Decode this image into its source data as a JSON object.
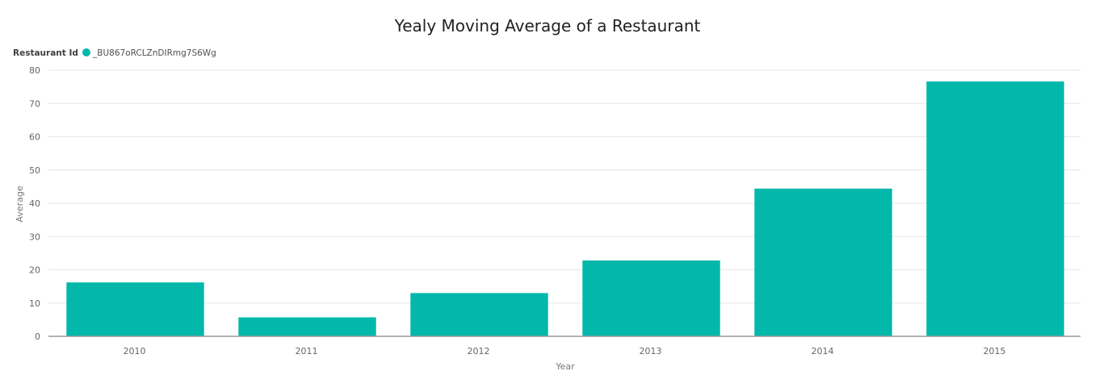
{
  "chart_data": {
    "type": "bar",
    "title": "Yealy Moving Average of a Restaurant",
    "xlabel": "Year",
    "ylabel": "Average",
    "legend_title": "Restaurant Id",
    "legend_placement": "top-left",
    "categories": [
      "2010",
      "2011",
      "2012",
      "2013",
      "2014",
      "2015"
    ],
    "series": [
      {
        "name": "_BU867oRCLZnDIRmg7S6Wg",
        "color": "#01b8aa",
        "values": [
          16.2,
          5.7,
          13.0,
          22.8,
          44.4,
          76.6
        ]
      }
    ],
    "ylim": [
      0,
      80
    ],
    "yticks": [
      0,
      10,
      20,
      30,
      40,
      50,
      60,
      70,
      80
    ],
    "grid": true
  }
}
